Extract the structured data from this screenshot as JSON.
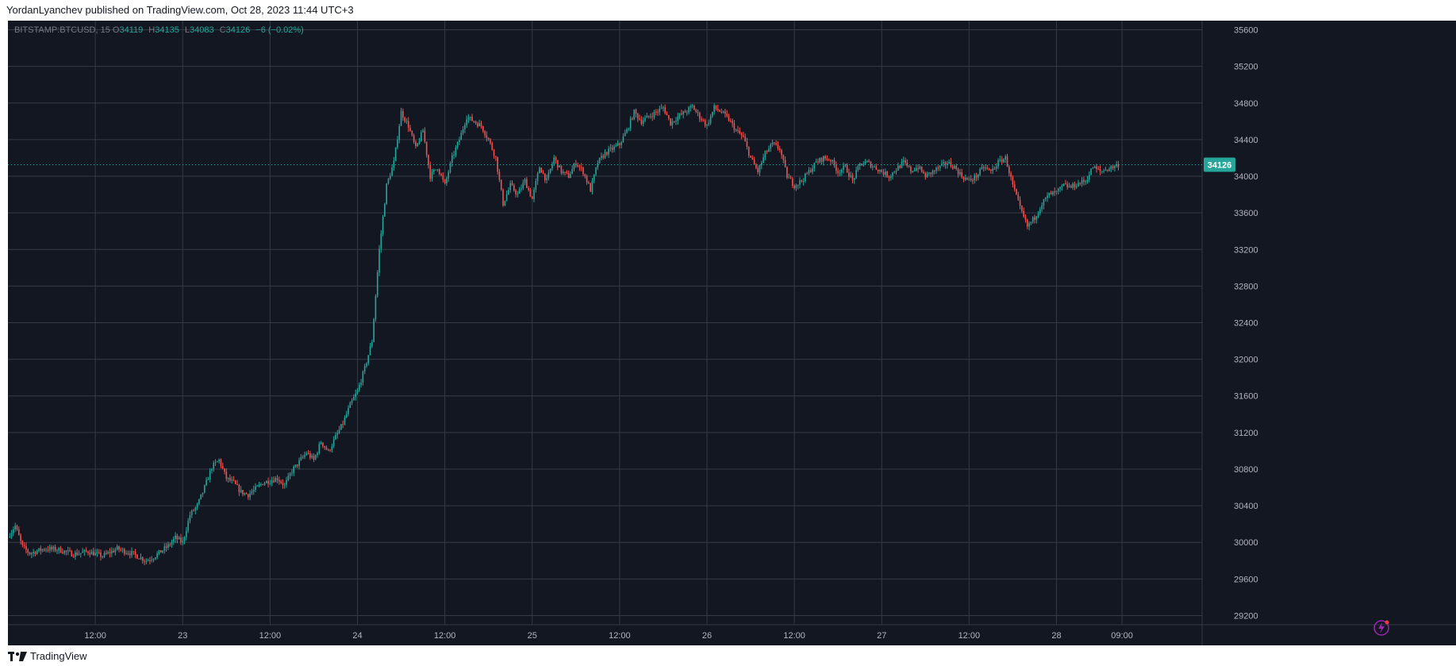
{
  "header": {
    "published_text": "YordanLyanchev published on TradingView.com, Oct 28, 2023 11:44 UTC+3"
  },
  "legend": {
    "symbol": "BITSTAMP:BTCUSD, 15",
    "open_label": "O",
    "open": "34119",
    "high_label": "H",
    "high": "34135",
    "low_label": "L",
    "low": "34083",
    "close_label": "C",
    "close": "34126",
    "change": "−6 (−0.02%)"
  },
  "footer": {
    "brand": "TradingView"
  },
  "colors": {
    "background": "#131722",
    "grid": "#363a45",
    "text": "#b2b5be",
    "up": "#26a69a",
    "down": "#ef5350",
    "price_tag": "#26a69a",
    "last_price_line": "#26a69a",
    "bolt": "#9c27b0"
  },
  "icons": {
    "logo": "tradingview-logo-icon",
    "bolt": "lightning-bolt-icon"
  },
  "chart_data": {
    "type": "candlestick",
    "symbol": "BITSTAMP:BTCUSD",
    "interval": "15",
    "grid": true,
    "last_price": 34126,
    "last_price_label": "34126",
    "y_axis": {
      "position": "right",
      "ylim": [
        29100,
        35700
      ],
      "ticks": [
        29200,
        29600,
        30000,
        30400,
        30800,
        31200,
        31600,
        32000,
        32400,
        32800,
        33200,
        33600,
        34000,
        34400,
        34800,
        35200,
        35600
      ],
      "tick_labels": [
        "29200",
        "29600",
        "30000",
        "30400",
        "30800",
        "31200",
        "31600",
        "32000",
        "32400",
        "32800",
        "33200",
        "33600",
        "34000",
        "34400",
        "34800",
        "35200",
        "35600"
      ]
    },
    "x_axis": {
      "xlim": [
        0,
        164
      ],
      "ticks": [
        {
          "hours": 12,
          "label": "12:00"
        },
        {
          "hours": 24,
          "label": "23"
        },
        {
          "hours": 36,
          "label": "12:00"
        },
        {
          "hours": 48,
          "label": "24"
        },
        {
          "hours": 60,
          "label": "12:00"
        },
        {
          "hours": 72,
          "label": "25"
        },
        {
          "hours": 84,
          "label": "12:00"
        },
        {
          "hours": 96,
          "label": "26"
        },
        {
          "hours": 108,
          "label": "12:00"
        },
        {
          "hours": 120,
          "label": "27"
        },
        {
          "hours": 132,
          "label": "12:00"
        },
        {
          "hours": 144,
          "label": "28"
        },
        {
          "hours": 153,
          "label": "09:00"
        }
      ]
    },
    "price_path": [
      [
        0,
        30060
      ],
      [
        1,
        30180
      ],
      [
        2,
        29950
      ],
      [
        3,
        29880
      ],
      [
        5,
        29930
      ],
      [
        7,
        29920
      ],
      [
        9,
        29870
      ],
      [
        11,
        29900
      ],
      [
        13,
        29850
      ],
      [
        15,
        29930
      ],
      [
        17,
        29880
      ],
      [
        19,
        29800
      ],
      [
        20,
        29840
      ],
      [
        22,
        29960
      ],
      [
        23,
        30050
      ],
      [
        24,
        30000
      ],
      [
        25,
        30300
      ],
      [
        26,
        30400
      ],
      [
        27,
        30600
      ],
      [
        28,
        30820
      ],
      [
        29,
        30900
      ],
      [
        30,
        30700
      ],
      [
        31,
        30650
      ],
      [
        32,
        30550
      ],
      [
        33,
        30520
      ],
      [
        35,
        30650
      ],
      [
        37,
        30700
      ],
      [
        38,
        30620
      ],
      [
        39,
        30780
      ],
      [
        41,
        30980
      ],
      [
        42,
        30900
      ],
      [
        43,
        31100
      ],
      [
        44,
        30990
      ],
      [
        45,
        31150
      ],
      [
        46,
        31300
      ],
      [
        47,
        31500
      ],
      [
        48,
        31650
      ],
      [
        49,
        31900
      ],
      [
        50,
        32200
      ],
      [
        51,
        33200
      ],
      [
        52,
        33900
      ],
      [
        53,
        34150
      ],
      [
        54,
        34700
      ],
      [
        55,
        34550
      ],
      [
        56,
        34300
      ],
      [
        57,
        34500
      ],
      [
        58,
        34000
      ],
      [
        59,
        34100
      ],
      [
        60,
        33900
      ],
      [
        61,
        34200
      ],
      [
        62,
        34400
      ],
      [
        63,
        34650
      ],
      [
        64,
        34600
      ],
      [
        65,
        34550
      ],
      [
        66,
        34400
      ],
      [
        67,
        34200
      ],
      [
        68,
        33700
      ],
      [
        69,
        33900
      ],
      [
        70,
        33800
      ],
      [
        71,
        33950
      ],
      [
        72,
        33750
      ],
      [
        73,
        34100
      ],
      [
        74,
        33950
      ],
      [
        75,
        34200
      ],
      [
        76,
        34050
      ],
      [
        77,
        34000
      ],
      [
        78,
        34150
      ],
      [
        79,
        34050
      ],
      [
        80,
        33850
      ],
      [
        81,
        34150
      ],
      [
        82,
        34250
      ],
      [
        83,
        34300
      ],
      [
        84,
        34350
      ],
      [
        85,
        34500
      ],
      [
        86,
        34700
      ],
      [
        87,
        34600
      ],
      [
        88,
        34650
      ],
      [
        89,
        34700
      ],
      [
        90,
        34750
      ],
      [
        91,
        34580
      ],
      [
        92,
        34650
      ],
      [
        93,
        34700
      ],
      [
        94,
        34760
      ],
      [
        95,
        34650
      ],
      [
        96,
        34550
      ],
      [
        97,
        34750
      ],
      [
        98,
        34700
      ],
      [
        99,
        34620
      ],
      [
        100,
        34500
      ],
      [
        101,
        34420
      ],
      [
        102,
        34200
      ],
      [
        103,
        34050
      ],
      [
        104,
        34250
      ],
      [
        105,
        34350
      ],
      [
        106,
        34300
      ],
      [
        107,
        34000
      ],
      [
        108,
        33900
      ],
      [
        109,
        33950
      ],
      [
        110,
        34050
      ],
      [
        111,
        34150
      ],
      [
        112,
        34200
      ],
      [
        113,
        34180
      ],
      [
        114,
        34050
      ],
      [
        115,
        34100
      ],
      [
        116,
        33950
      ],
      [
        117,
        34130
      ],
      [
        118,
        34150
      ],
      [
        119,
        34100
      ],
      [
        120,
        34050
      ],
      [
        121,
        34000
      ],
      [
        122,
        34080
      ],
      [
        123,
        34150
      ],
      [
        124,
        34060
      ],
      [
        125,
        34100
      ],
      [
        126,
        34000
      ],
      [
        127,
        34050
      ],
      [
        128,
        34100
      ],
      [
        129,
        34150
      ],
      [
        130,
        34100
      ],
      [
        131,
        34000
      ],
      [
        132,
        33950
      ],
      [
        133,
        34000
      ],
      [
        134,
        34100
      ],
      [
        135,
        34050
      ],
      [
        136,
        34150
      ],
      [
        137,
        34200
      ],
      [
        138,
        33900
      ],
      [
        139,
        33650
      ],
      [
        140,
        33450
      ],
      [
        141,
        33550
      ],
      [
        142,
        33700
      ],
      [
        143,
        33800
      ],
      [
        144,
        33820
      ],
      [
        145,
        33900
      ],
      [
        146,
        33880
      ],
      [
        147,
        33920
      ],
      [
        148,
        33950
      ],
      [
        149,
        34100
      ],
      [
        150,
        34050
      ],
      [
        151,
        34080
      ],
      [
        152,
        34110
      ],
      [
        152.5,
        34126
      ]
    ]
  }
}
